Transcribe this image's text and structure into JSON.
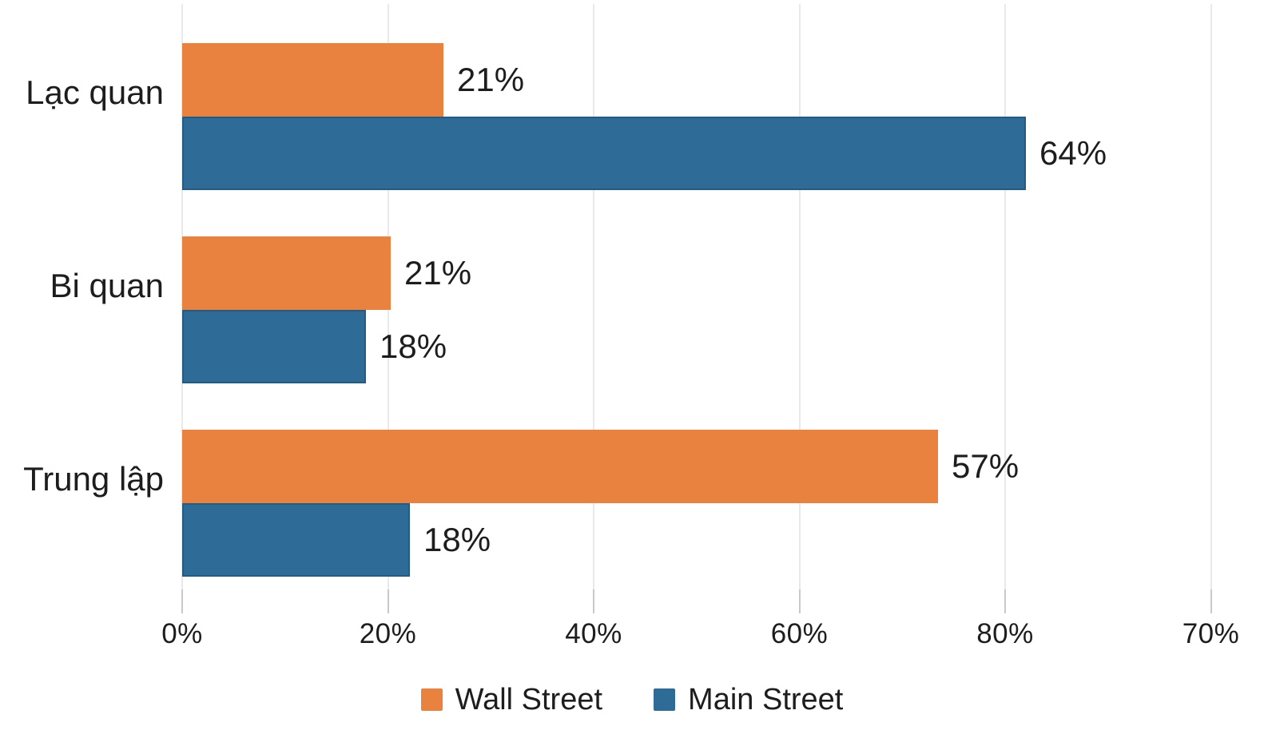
{
  "chart_data": {
    "type": "bar",
    "orientation": "horizontal",
    "title": "",
    "xlabel": "",
    "ylabel": "",
    "categories": [
      "Lạc quan",
      "Bi quan",
      "Trung lập"
    ],
    "series": [
      {
        "name": "Wall Street",
        "color": "#e8823e",
        "values": [
          21,
          21,
          57
        ],
        "value_labels": [
          "21%",
          "21%",
          "57%"
        ]
      },
      {
        "name": "Main Street",
        "color": "#2e6b96",
        "values": [
          64,
          18,
          18
        ],
        "value_labels": [
          "64%",
          "18%",
          "18%"
        ]
      }
    ],
    "bars_as_drawn_axis_pct": [
      [
        25.4,
        20.3,
        73.5
      ],
      [
        82.0,
        17.9,
        22.1
      ]
    ],
    "x_axis": {
      "tick_labels": [
        "0%",
        "20%",
        "40%",
        "60%",
        "80%",
        "70%"
      ],
      "tick_positions_axis_pct": [
        0,
        20,
        40,
        60,
        80,
        100
      ]
    },
    "grid": true,
    "legend_position": "bottom",
    "colors": {
      "background": "#ffffff",
      "text": "#1d1d1d",
      "gridline": "#e7e9eb",
      "tick": "#c6cace",
      "blue_bar_stroke": "rgba(16,62,94,0.35)"
    }
  }
}
